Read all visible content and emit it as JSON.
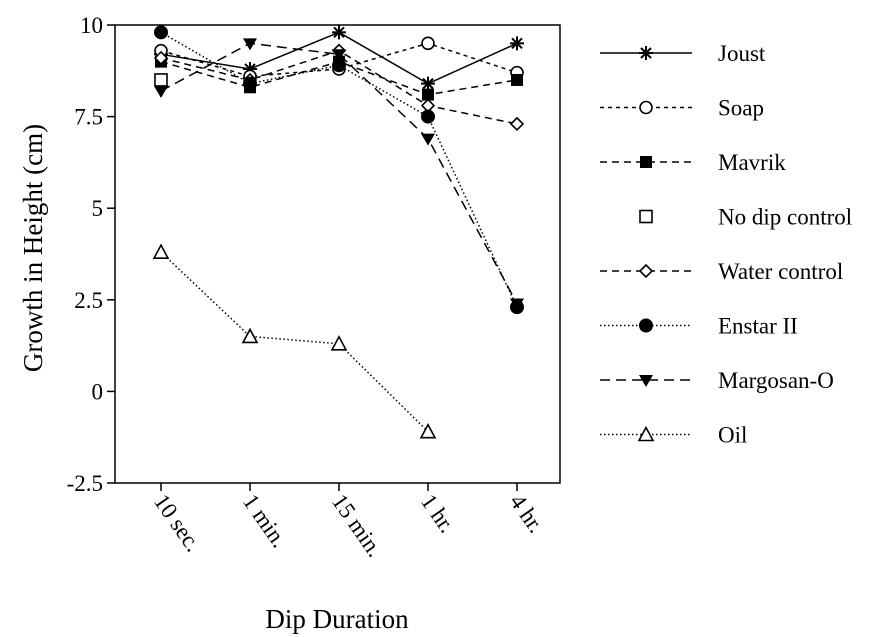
{
  "chart_data": {
    "type": "line",
    "title": "",
    "xlabel": "Dip Duration",
    "ylabel": "Growth in Height (cm)",
    "categories": [
      "10 sec.",
      "1 min.",
      "15 min.",
      "1 hr.",
      "4 hr."
    ],
    "ylim": [
      -2.5,
      10
    ],
    "yticks": [
      -2.5,
      0,
      2.5,
      5,
      7.5,
      10
    ],
    "ytick_labels": [
      "-2.5",
      "0",
      "2.5",
      "5",
      "7.5",
      "10"
    ],
    "grid": false,
    "legend_position": "right",
    "series": [
      {
        "name": "Joust",
        "marker": "asterisk",
        "line": "solid",
        "values": [
          9.2,
          8.8,
          9.8,
          8.4,
          9.5
        ]
      },
      {
        "name": "Soap",
        "marker": "circle-open",
        "line": "dashed-short",
        "values": [
          9.3,
          8.6,
          8.8,
          9.5,
          8.7
        ]
      },
      {
        "name": "Mavrik",
        "marker": "square-filled",
        "line": "dashed",
        "values": [
          9.0,
          8.3,
          9.0,
          8.1,
          8.5
        ]
      },
      {
        "name": "No dip control",
        "marker": "square-open",
        "line": "none",
        "values": [
          8.5,
          null,
          null,
          null,
          null
        ]
      },
      {
        "name": "Water control",
        "marker": "diamond-open",
        "line": "dashed",
        "values": [
          9.1,
          8.5,
          9.3,
          7.8,
          7.3
        ]
      },
      {
        "name": "Enstar II",
        "marker": "circle-filled",
        "line": "dotted",
        "values": [
          9.8,
          8.4,
          8.9,
          7.5,
          2.3
        ]
      },
      {
        "name": "Margosan-O",
        "marker": "triangle-down-filled",
        "line": "dashed-long",
        "values": [
          8.2,
          9.5,
          9.2,
          6.9,
          2.4
        ]
      },
      {
        "name": "Oil",
        "marker": "triangle-up-open",
        "line": "dotted",
        "values": [
          3.8,
          1.5,
          1.3,
          -1.1,
          null
        ]
      }
    ]
  }
}
